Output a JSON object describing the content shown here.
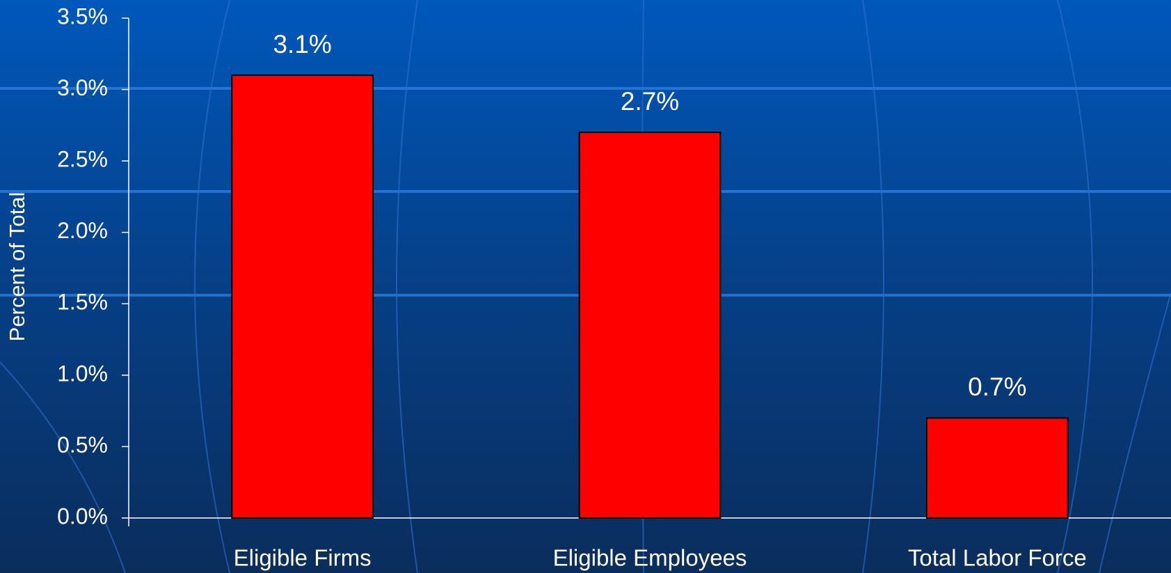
{
  "chart_data": {
    "type": "bar",
    "y_label": "Percent of Total",
    "categories": [
      "Eligible Firms",
      "Eligible Employees",
      "Total Labor Force"
    ],
    "values": [
      3.1,
      2.7,
      0.7
    ],
    "value_labels": [
      "3.1%",
      "2.7%",
      "0.7%"
    ],
    "color": "#ff0000",
    "ylim": [
      0,
      3.5
    ],
    "yticks": [
      {
        "value": 0,
        "label": "0.0%"
      },
      {
        "value": 0.5,
        "label": "0.5%"
      },
      {
        "value": 1,
        "label": "1.0%"
      },
      {
        "value": 1.5,
        "label": "1.5%"
      },
      {
        "value": 2,
        "label": "2.0%"
      },
      {
        "value": 2.5,
        "label": "2.5%"
      },
      {
        "value": 3,
        "label": "3.0%"
      },
      {
        "value": 3.5,
        "label": "3.5%"
      }
    ],
    "grid": false
  }
}
